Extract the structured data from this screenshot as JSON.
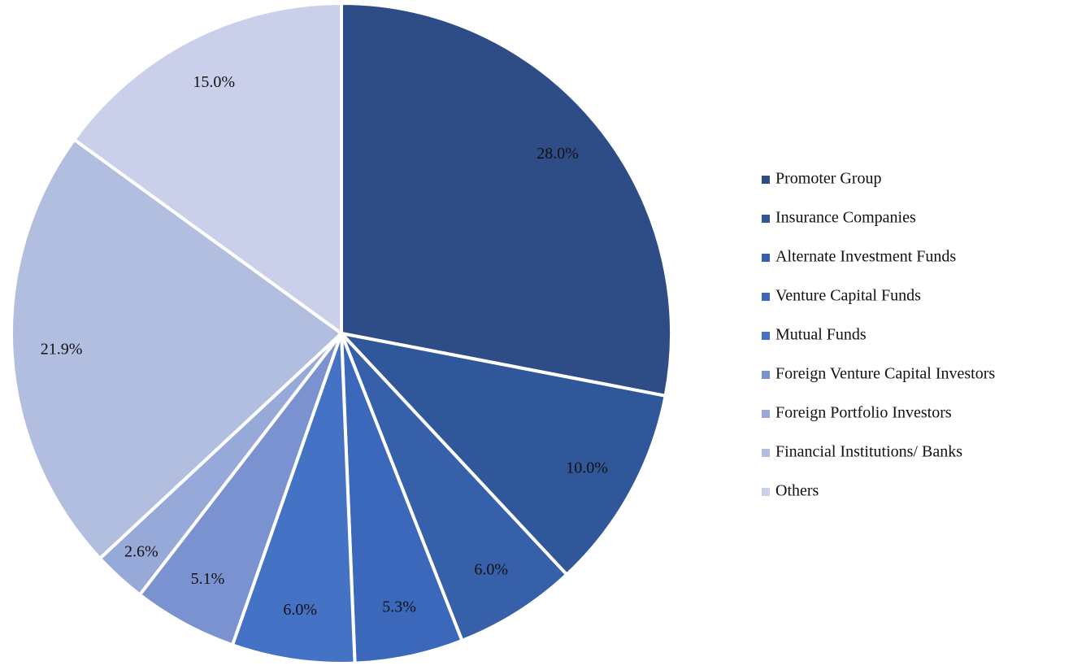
{
  "chart_data": {
    "type": "pie",
    "categories": [
      "Promoter Group",
      "Insurance Companies",
      "Alternate Investment Funds",
      "Venture Capital Funds",
      "Mutual Funds",
      "Foreign Venture Capital Investors",
      "Foreign Portfolio Investors",
      "Financial Institutions/ Banks",
      "Others"
    ],
    "values": [
      28.0,
      10.0,
      6.0,
      5.3,
      6.0,
      5.1,
      2.6,
      21.9,
      15.0
    ],
    "value_labels": [
      "28.0%",
      "10.0%",
      "6.0%",
      "5.3%",
      "6.0%",
      "5.1%",
      "2.6%",
      "21.9%",
      "15.0%"
    ],
    "colors": [
      "#2e4d87",
      "#30579a",
      "#3660aa",
      "#3b68bb",
      "#4472c4",
      "#7a92cf",
      "#97a9d8",
      "#b2bedf",
      "#cad0ea"
    ],
    "legend": "right"
  }
}
